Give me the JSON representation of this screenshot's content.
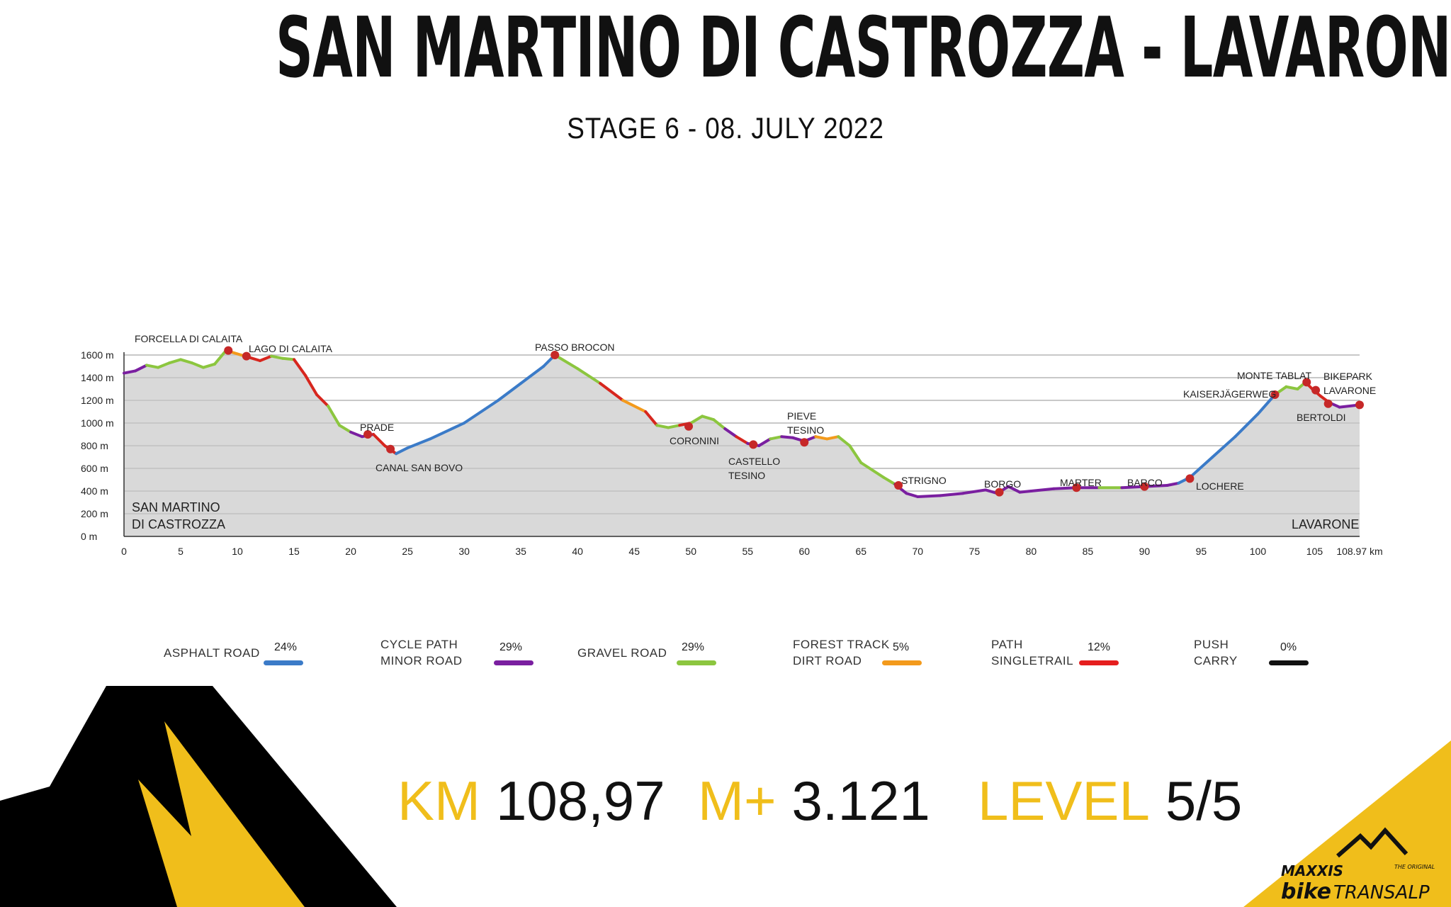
{
  "title": "SAN MARTINO DI CASTROZZA - LAVARONE",
  "subtitle": "STAGE 6 - 08. JULY 2022",
  "colors": {
    "asphalt": "#3b7bc8",
    "cycle": "#7a1fa0",
    "gravel": "#8cc63f",
    "forest": "#f39a1c",
    "path": "#d7261e",
    "push": "#111111",
    "accent": "#f0be1b",
    "fill": "#d9d9d9",
    "marker": "#c62828"
  },
  "chart_data": {
    "type": "area",
    "xlabel": "",
    "ylabel": "",
    "x_unit": "km",
    "y_unit": "m",
    "xlim": [
      0,
      108.97
    ],
    "ylim": [
      0,
      1600
    ],
    "y_ticks": [
      "0 m",
      "200 m",
      "400 m",
      "600 m",
      "800 m",
      "1000 m",
      "1200 m",
      "1400 m",
      "1600 m"
    ],
    "x_ticks": [
      "0",
      "5",
      "10",
      "15",
      "20",
      "25",
      "30",
      "35",
      "40",
      "45",
      "50",
      "55",
      "60",
      "65",
      "70",
      "75",
      "80",
      "85",
      "90",
      "95",
      "100",
      "105",
      "108.97 km"
    ],
    "start_label": [
      "SAN MARTINO",
      "DI CASTROZZA"
    ],
    "end_label": "LAVARONE",
    "profile": [
      [
        0,
        1440,
        "cycle"
      ],
      [
        1,
        1460,
        "cycle"
      ],
      [
        2,
        1510,
        "gravel"
      ],
      [
        3,
        1490,
        "gravel"
      ],
      [
        4,
        1530,
        "gravel"
      ],
      [
        5,
        1560,
        "gravel"
      ],
      [
        6,
        1530,
        "gravel"
      ],
      [
        7,
        1490,
        "gravel"
      ],
      [
        8,
        1520,
        "gravel"
      ],
      [
        9,
        1640,
        "forest"
      ],
      [
        10,
        1610,
        "forest"
      ],
      [
        11,
        1580,
        "path"
      ],
      [
        12,
        1550,
        "path"
      ],
      [
        13,
        1590,
        "gravel"
      ],
      [
        14,
        1570,
        "gravel"
      ],
      [
        15,
        1560,
        "path"
      ],
      [
        16,
        1420,
        "path"
      ],
      [
        17,
        1250,
        "path"
      ],
      [
        18,
        1150,
        "gravel"
      ],
      [
        19,
        980,
        "gravel"
      ],
      [
        20,
        920,
        "cycle"
      ],
      [
        21,
        880,
        "cycle"
      ],
      [
        22,
        900,
        "path"
      ],
      [
        23,
        800,
        "path"
      ],
      [
        24,
        730,
        "asphalt"
      ],
      [
        25,
        780,
        "asphalt"
      ],
      [
        27,
        860,
        "asphalt"
      ],
      [
        30,
        1000,
        "asphalt"
      ],
      [
        33,
        1200,
        "asphalt"
      ],
      [
        35,
        1350,
        "asphalt"
      ],
      [
        37,
        1500,
        "asphalt"
      ],
      [
        38,
        1600,
        "gravel"
      ],
      [
        40,
        1480,
        "gravel"
      ],
      [
        42,
        1350,
        "path"
      ],
      [
        44,
        1200,
        "forest"
      ],
      [
        46,
        1100,
        "path"
      ],
      [
        47,
        980,
        "gravel"
      ],
      [
        48,
        960,
        "gravel"
      ],
      [
        49,
        980,
        "path"
      ],
      [
        50,
        1000,
        "gravel"
      ],
      [
        51,
        1060,
        "gravel"
      ],
      [
        52,
        1030,
        "gravel"
      ],
      [
        53,
        950,
        "cycle"
      ],
      [
        54,
        880,
        "path"
      ],
      [
        55,
        820,
        "cycle"
      ],
      [
        56,
        800,
        "cycle"
      ],
      [
        57,
        860,
        "gravel"
      ],
      [
        58,
        880,
        "cycle"
      ],
      [
        59,
        870,
        "cycle"
      ],
      [
        60,
        840,
        "cycle"
      ],
      [
        61,
        880,
        "forest"
      ],
      [
        62,
        860,
        "forest"
      ],
      [
        63,
        880,
        "gravel"
      ],
      [
        64,
        800,
        "gravel"
      ],
      [
        65,
        650,
        "gravel"
      ],
      [
        67,
        520,
        "gravel"
      ],
      [
        68,
        460,
        "cycle"
      ],
      [
        69,
        380,
        "cycle"
      ],
      [
        70,
        350,
        "cycle"
      ],
      [
        72,
        360,
        "cycle"
      ],
      [
        74,
        380,
        "cycle"
      ],
      [
        76,
        410,
        "cycle"
      ],
      [
        77,
        380,
        "cycle"
      ],
      [
        78,
        440,
        "cycle"
      ],
      [
        79,
        390,
        "cycle"
      ],
      [
        80,
        400,
        "cycle"
      ],
      [
        82,
        420,
        "cycle"
      ],
      [
        84,
        430,
        "cycle"
      ],
      [
        86,
        430,
        "gravel"
      ],
      [
        88,
        430,
        "cycle"
      ],
      [
        90,
        440,
        "cycle"
      ],
      [
        92,
        450,
        "cycle"
      ],
      [
        93,
        470,
        "asphalt"
      ],
      [
        94,
        520,
        "asphalt"
      ],
      [
        96,
        700,
        "asphalt"
      ],
      [
        98,
        880,
        "asphalt"
      ],
      [
        100,
        1080,
        "asphalt"
      ],
      [
        101.5,
        1250,
        "gravel"
      ],
      [
        102.5,
        1320,
        "gravel"
      ],
      [
        103.5,
        1300,
        "gravel"
      ],
      [
        104.2,
        1360,
        "path"
      ],
      [
        104.8,
        1300,
        "path"
      ],
      [
        105.5,
        1240,
        "path"
      ],
      [
        106.3,
        1180,
        "cycle"
      ],
      [
        107.2,
        1140,
        "cycle"
      ],
      [
        108.97,
        1160,
        "cycle"
      ]
    ],
    "waypoints": [
      {
        "name": "FORCELLA DI CALAITA",
        "km": 9.2,
        "ele": 1640
      },
      {
        "name": "LAGO DI CALAITA",
        "km": 10.8,
        "ele": 1590
      },
      {
        "name": "PRADE",
        "km": 21.5,
        "ele": 900
      },
      {
        "name": "CANAL SAN BOVO",
        "km": 23.5,
        "ele": 770
      },
      {
        "name": "PASSO BROCON",
        "km": 38,
        "ele": 1600
      },
      {
        "name": "CORONINI",
        "km": 49.8,
        "ele": 970
      },
      {
        "name": "CASTELLO TESINO",
        "km": 55.5,
        "ele": 810
      },
      {
        "name": "PIEVE TESINO",
        "km": 60,
        "ele": 830
      },
      {
        "name": "STRIGNO",
        "km": 68.3,
        "ele": 450
      },
      {
        "name": "BORGO",
        "km": 77.2,
        "ele": 390
      },
      {
        "name": "MARTER",
        "km": 84,
        "ele": 430
      },
      {
        "name": "BARCO",
        "km": 90,
        "ele": 440
      },
      {
        "name": "LOCHERE",
        "km": 94,
        "ele": 510
      },
      {
        "name": "KAISERJÄGERWEG",
        "km": 101.5,
        "ele": 1250
      },
      {
        "name": "MONTE TABLAT",
        "km": 104.3,
        "ele": 1360
      },
      {
        "name": "BIKEPARK LAVARONE",
        "km": 105.1,
        "ele": 1290
      },
      {
        "name": "BERTOLDI",
        "km": 106.2,
        "ele": 1170
      },
      {
        "name": "",
        "km": 108.97,
        "ele": 1160
      }
    ]
  },
  "legend": [
    {
      "label": "ASPHALT ROAD",
      "pct": "24%",
      "color": "#3b7bc8"
    },
    {
      "label": "CYCLE PATH\nMINOR ROAD",
      "pct": "29%",
      "color": "#7a1fa0"
    },
    {
      "label": "GRAVEL ROAD",
      "pct": "29%",
      "color": "#8cc63f"
    },
    {
      "label": "FOREST TRACK\nDIRT ROAD",
      "pct": "5%",
      "color": "#f39a1c"
    },
    {
      "label": "PATH\nSINGLETRAIL",
      "pct": "12%",
      "color": "#e51e1e"
    },
    {
      "label": "PUSH\nCARRY",
      "pct": "0%",
      "color": "#111111"
    }
  ],
  "stats": {
    "km_key": "KM",
    "km_val": "108,97",
    "climb_key": "M+",
    "climb_val": "3.121",
    "level_key": "LEVEL",
    "level_val": "5/5"
  },
  "brand": {
    "line1": "MAXXIS",
    "line2": "bike",
    "line3": "TRANSALP",
    "tag": "THE ORIGINAL"
  }
}
